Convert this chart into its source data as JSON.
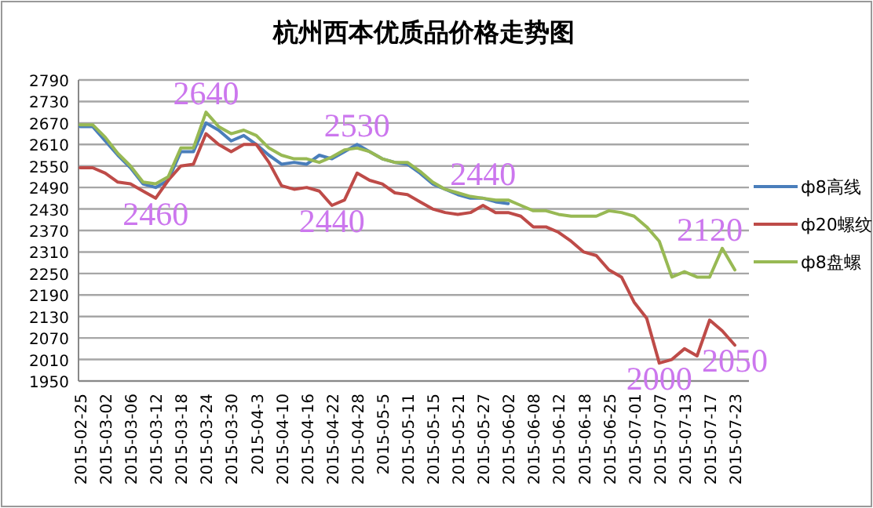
{
  "chart_data": {
    "type": "line",
    "title": "杭州西本优质品价格走势图",
    "categories": [
      "2015-02-25",
      null,
      "2015-03-02",
      null,
      "2015-03-06",
      null,
      "2015-03-12",
      null,
      "2015-03-18",
      null,
      "2015-03-24",
      null,
      "2015-03-30",
      null,
      "2015-04-3",
      null,
      "2015-04-10",
      null,
      "2015-04-16",
      null,
      "2015-04-22",
      null,
      "2015-04-28",
      null,
      "2015-05-5",
      null,
      "2015-05-11",
      null,
      "2015-05-15",
      null,
      "2015-05-21",
      null,
      "2015-05-27",
      null,
      "2015-06-02",
      null,
      "2015-06-08",
      null,
      "2015-06-12",
      null,
      "2015-06-18",
      null,
      "2015-06-25",
      null,
      "2015-07-01",
      null,
      "2015-07-07",
      null,
      "2015-07-13",
      null,
      "2015-07-17",
      null,
      "2015-07-23"
    ],
    "series": [
      {
        "name": "ф8高线",
        "color": "#4a7ebb",
        "values": [
          2660,
          2660,
          2620,
          2580,
          2545,
          2500,
          2490,
          2510,
          2590,
          2590,
          2670,
          2650,
          2620,
          2635,
          2610,
          2580,
          2555,
          2560,
          2555,
          2580,
          2570,
          2590,
          2610,
          2590,
          2570,
          2560,
          2555,
          2530,
          2500,
          2485,
          2470,
          2460,
          2460,
          2450,
          2445,
          null,
          null,
          null,
          null,
          null,
          null,
          null,
          null,
          null,
          null,
          null,
          null,
          null,
          null,
          null,
          null,
          null,
          null
        ]
      },
      {
        "name": "ф20螺纹",
        "color": "#be4b48",
        "values": [
          2545,
          2545,
          2530,
          2505,
          2500,
          2480,
          2460,
          2510,
          2550,
          2555,
          2640,
          2610,
          2590,
          2610,
          2610,
          2560,
          2495,
          2485,
          2490,
          2480,
          2440,
          2455,
          2530,
          2510,
          2500,
          2475,
          2470,
          2450,
          2430,
          2420,
          2415,
          2420,
          2440,
          2420,
          2420,
          2410,
          2380,
          2380,
          2365,
          2340,
          2310,
          2300,
          2260,
          2240,
          2170,
          2125,
          2000,
          2010,
          2040,
          2020,
          2120,
          2090,
          2050
        ]
      },
      {
        "name": "ф8盘螺",
        "color": "#98b954",
        "values": [
          2665,
          2665,
          2630,
          2585,
          2550,
          2505,
          2500,
          2520,
          2600,
          2600,
          2700,
          2660,
          2640,
          2650,
          2635,
          2600,
          2580,
          2570,
          2570,
          2560,
          2575,
          2595,
          2600,
          2590,
          2570,
          2560,
          2560,
          2535,
          2505,
          2485,
          2475,
          2465,
          2460,
          2455,
          2455,
          2440,
          2425,
          2425,
          2415,
          2410,
          2410,
          2410,
          2425,
          2420,
          2410,
          2380,
          2340,
          2240,
          2255,
          2240,
          2240,
          2320,
          2260
        ]
      }
    ],
    "ylim": [
      1950,
      2790
    ],
    "yticks": [
      1950,
      2010,
      2070,
      2130,
      2190,
      2250,
      2310,
      2370,
      2430,
      2490,
      2550,
      2610,
      2670,
      2730,
      2790
    ],
    "grid": "y",
    "legend": "right",
    "marker": "none",
    "line_style": "solid",
    "annotations": [
      {
        "text": "2460",
        "x": "2015-03-12",
        "y": 2460
      },
      {
        "text": "2640",
        "x": "2015-03-24",
        "y": 2640
      },
      {
        "text": "2440",
        "x": "2015-04-22",
        "y": 2440
      },
      {
        "text": "2530",
        "x": "2015-04-28",
        "y": 2530
      },
      {
        "text": "2440",
        "x": "2015-05-27",
        "y": 2440
      },
      {
        "text": "2000",
        "x": "2015-07-07",
        "y": 2000
      },
      {
        "text": "2120",
        "x": "2015-07-17",
        "y": 2120
      },
      {
        "text": "2050",
        "x": "2015-07-23",
        "y": 2050
      }
    ]
  }
}
